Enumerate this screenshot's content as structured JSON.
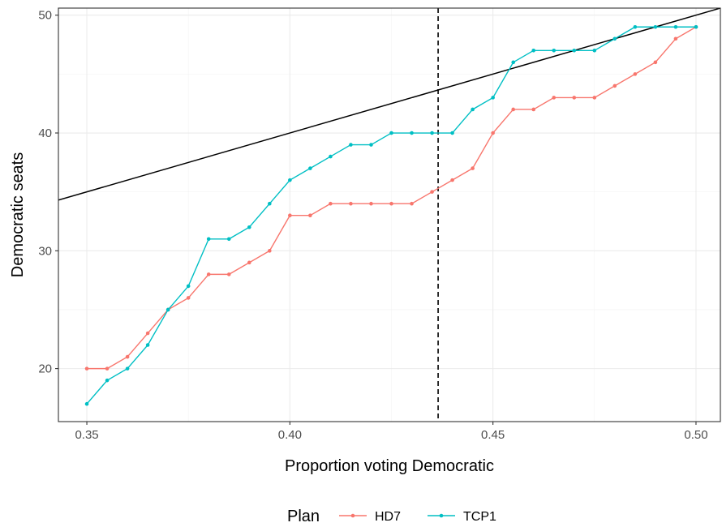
{
  "chart_data": {
    "type": "line",
    "xlabel": "Proportion voting Democratic",
    "ylabel": "Democratic seats",
    "xlim": [
      0.343,
      0.506
    ],
    "ylim": [
      15.5,
      50.6
    ],
    "xticks": [
      0.35,
      0.4,
      0.45,
      0.5
    ],
    "xtick_labels": [
      "0.35",
      "0.40",
      "0.45",
      "0.50"
    ],
    "yticks": [
      20,
      30,
      40,
      50
    ],
    "ytick_labels": [
      "20",
      "30",
      "40",
      "50"
    ],
    "grid": true,
    "legend": {
      "title": "Plan",
      "placement": "bottom"
    },
    "x": [
      0.35,
      0.355,
      0.36,
      0.365,
      0.37,
      0.375,
      0.38,
      0.385,
      0.39,
      0.395,
      0.4,
      0.405,
      0.41,
      0.415,
      0.42,
      0.425,
      0.43,
      0.435,
      0.44,
      0.445,
      0.45,
      0.455,
      0.46,
      0.465,
      0.47,
      0.475,
      0.48,
      0.485,
      0.49,
      0.495,
      0.5
    ],
    "series": [
      {
        "name": "HD7",
        "color": "#F8766D",
        "values": [
          20,
          20,
          21,
          23,
          25,
          26,
          28,
          28,
          29,
          30,
          33,
          33,
          34,
          34,
          34,
          34,
          34,
          35,
          36,
          37,
          40,
          42,
          42,
          43,
          43,
          43,
          44,
          45,
          46,
          48,
          49
        ]
      },
      {
        "name": "TCP1",
        "color": "#00BFC4",
        "values": [
          17,
          19,
          20,
          22,
          25,
          27,
          31,
          31,
          32,
          34,
          36,
          37,
          38,
          39,
          39,
          40,
          40,
          40,
          40,
          42,
          43,
          46,
          47,
          47,
          47,
          47,
          48,
          49,
          49,
          49,
          49
        ]
      }
    ],
    "reference_line": {
      "type": "proportional",
      "slope_seats_per_proportion": 100,
      "color": "#000000"
    },
    "vertical_line": {
      "x": 0.4365,
      "style": "dashed",
      "color": "#000000"
    }
  }
}
